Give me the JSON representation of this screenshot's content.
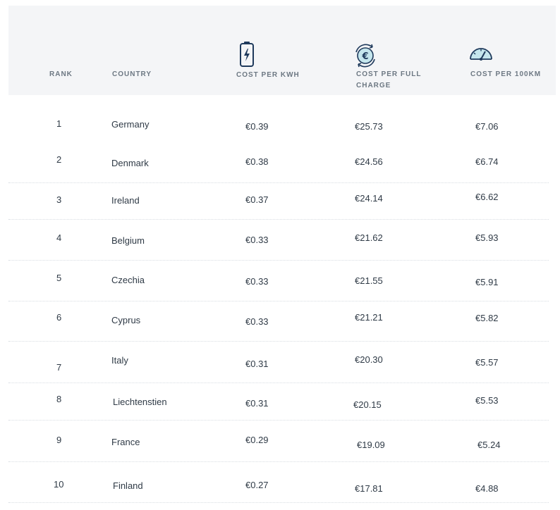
{
  "header": {
    "rank": "RANK",
    "country": "COUNTRY",
    "cost_per_kwh": "COST PER KWH",
    "cost_per_full_charge_line1": "COST PER FULL",
    "cost_per_full_charge_line2": "CHARGE",
    "cost_per_100km": "COST PER 100KM",
    "icons": {
      "kwh": "battery-charging-icon",
      "full_charge": "euro-cycle-icon",
      "per_100km": "speedometer-icon"
    }
  },
  "colors": {
    "header_bg": "#f4f5f7",
    "icon_stroke": "#1f3a5c",
    "icon_accent": "#9ed8e6"
  },
  "rows": [
    {
      "rank": "1",
      "country": "Germany",
      "kwh": "€0.39",
      "full": "€25.73",
      "km": "€7.06"
    },
    {
      "rank": "2",
      "country": "Denmark",
      "kwh": "€0.38",
      "full": "€24.56",
      "km": "€6.74"
    },
    {
      "rank": "3",
      "country": "Ireland",
      "kwh": "€0.37",
      "full": "€24.14",
      "km": "€6.62"
    },
    {
      "rank": "4",
      "country": "Belgium",
      "kwh": "€0.33",
      "full": "€21.62",
      "km": "€5.93"
    },
    {
      "rank": "5",
      "country": "Czechia",
      "kwh": "€0.33",
      "full": "€21.55",
      "km": "€5.91"
    },
    {
      "rank": "6",
      "country": "Cyprus",
      "kwh": "€0.33",
      "full": "€21.21",
      "km": "€5.82"
    },
    {
      "rank": "7",
      "country": "Italy",
      "kwh": "€0.31",
      "full": "€20.30",
      "km": "€5.57"
    },
    {
      "rank": "8",
      "country": "Liechtenstien",
      "kwh": "€0.31",
      "full": "€20.15",
      "km": "€5.53"
    },
    {
      "rank": "9",
      "country": "France",
      "kwh": "€0.29",
      "full": "€19.09",
      "km": "€5.24"
    },
    {
      "rank": "10",
      "country": "Finland",
      "kwh": "€0.27",
      "full": "€17.81",
      "km": "€4.88"
    }
  ]
}
